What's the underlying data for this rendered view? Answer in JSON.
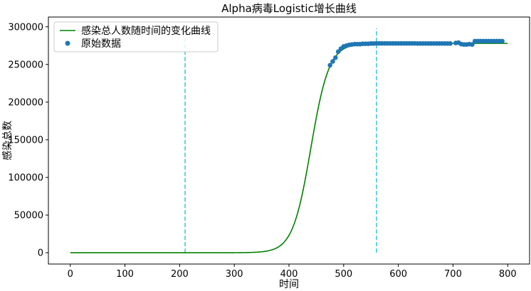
{
  "chart_data": {
    "type": "line",
    "title": "Alpha病毒Logistic增长曲线",
    "xlabel": "时间",
    "ylabel": "感染总数",
    "xlim": [
      -40,
      840
    ],
    "ylim": [
      -15000,
      313000
    ],
    "x_ticks": [
      0,
      100,
      200,
      300,
      400,
      500,
      600,
      700,
      800
    ],
    "y_ticks": [
      0,
      50000,
      100000,
      150000,
      200000,
      250000,
      300000
    ],
    "grid": false,
    "legend_position": "top-left",
    "colors": {
      "fit": "#008000",
      "data": "#1f77b4",
      "vline": "#17becf"
    },
    "series": [
      {
        "name": "感染总人数随时间的变化曲线",
        "kind": "line",
        "model": {
          "type": "logistic",
          "K": 278000,
          "r": 0.06,
          "t0": 440
        },
        "x_range": [
          0,
          800
        ]
      },
      {
        "name": "原始数据",
        "kind": "scatter",
        "x": [
          475,
          480,
          485,
          490,
          495,
          500,
          505,
          510,
          515,
          520,
          525,
          530,
          535,
          540,
          545,
          550,
          555,
          560,
          565,
          570,
          575,
          580,
          585,
          590,
          595,
          600,
          605,
          610,
          615,
          620,
          625,
          630,
          635,
          640,
          645,
          650,
          655,
          660,
          665,
          670,
          675,
          680,
          685,
          690,
          695,
          705,
          710,
          715,
          720,
          725,
          730,
          735,
          740,
          745,
          750,
          755,
          760,
          765,
          770,
          775,
          780,
          785,
          790
        ],
        "y": [
          249000,
          254000,
          259000,
          267000,
          271000,
          274000,
          275000,
          276000,
          276500,
          277000,
          277000,
          277000,
          277500,
          277500,
          277500,
          277800,
          277800,
          278000,
          278000,
          278000,
          278000,
          278000,
          278000,
          278000,
          278000,
          278000,
          278000,
          278000,
          278000,
          278000,
          278000,
          278000,
          277900,
          277900,
          277900,
          277900,
          277900,
          277900,
          277900,
          277900,
          277900,
          277900,
          277800,
          277800,
          277800,
          278500,
          279000,
          277000,
          276500,
          276500,
          277000,
          276500,
          281000,
          281000,
          281000,
          281000,
          281000,
          281000,
          281000,
          281000,
          281000,
          281000,
          281000
        ]
      }
    ],
    "vlines": [
      {
        "x": 210,
        "y_range": [
          0,
          298000
        ]
      },
      {
        "x": 560,
        "y_range": [
          0,
          298000
        ]
      }
    ]
  }
}
